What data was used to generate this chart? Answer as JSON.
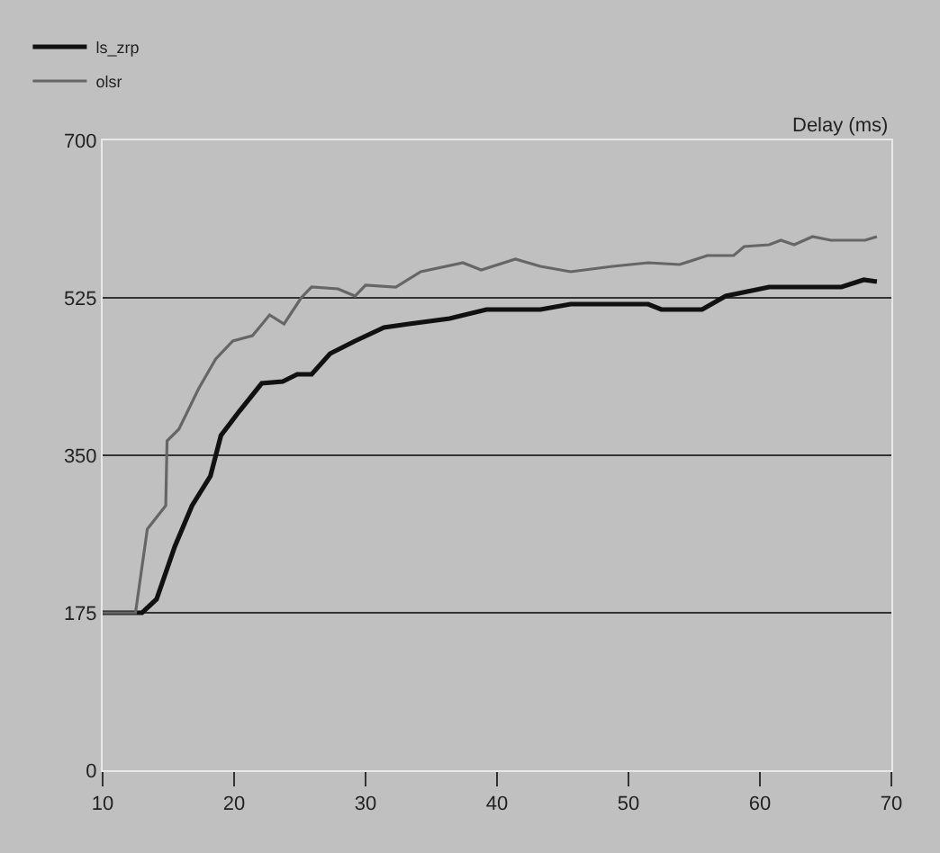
{
  "chart_data": {
    "type": "line",
    "ylabel": "Delay (ms)",
    "xlim": [
      10,
      70
    ],
    "xticks": [
      10,
      20,
      30,
      40,
      50,
      60,
      70
    ],
    "ylim": [
      0,
      700
    ],
    "yticks": [
      0,
      175,
      350,
      525,
      700
    ],
    "grid": "y",
    "legend": "top left",
    "marker": "none",
    "line_style": "solid",
    "series": [
      {
        "name": "ls_zrp",
        "color": "#111111",
        "x": [
          10,
          13,
          14.1,
          15.5,
          16.8,
          18.2,
          19.0,
          20.4,
          22.1,
          23.7,
          24.8,
          25.9,
          27.3,
          29.2,
          31.4,
          33.3,
          36.4,
          39.2,
          43.3,
          45.6,
          51.5,
          52.5,
          55.6,
          57.4,
          60.7,
          66.2,
          67.9,
          68.9
        ],
        "values": [
          175,
          175,
          190,
          249,
          294,
          327,
          372,
          399,
          430,
          432,
          440,
          440,
          463,
          477,
          492,
          496,
          502,
          512,
          512,
          518,
          518,
          512,
          512,
          527,
          537,
          537,
          545,
          543
        ]
      },
      {
        "name": "olsr",
        "color": "#666666",
        "x": [
          10,
          12.5,
          13.4,
          14.8,
          14.9,
          15.8,
          17.3,
          18.6,
          19.9,
          21.4,
          22.7,
          23.8,
          25.1,
          25.9,
          27.9,
          29.2,
          30,
          32.3,
          34.2,
          37.4,
          38.8,
          41.4,
          43.3,
          45.6,
          48.8,
          51.5,
          53.9,
          56.0,
          58,
          58.8,
          60.7,
          61.6,
          62.6,
          64,
          65.4,
          68,
          68.9
        ],
        "values": [
          175,
          175,
          268,
          294,
          366,
          379,
          424,
          457,
          477,
          483,
          506,
          496,
          525,
          537,
          535,
          527,
          539,
          537,
          554,
          564,
          556,
          568,
          560,
          554,
          560,
          564,
          562,
          572,
          572,
          582,
          584,
          589,
          584,
          593,
          589,
          589,
          593
        ]
      }
    ]
  }
}
